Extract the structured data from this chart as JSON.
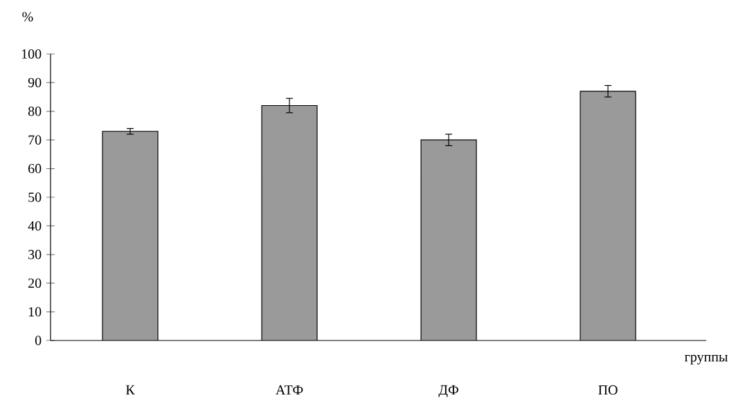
{
  "chart_data": {
    "type": "bar",
    "xlabel": "группы",
    "ylabel": "%",
    "categories": [
      "К",
      "АТФ",
      "ДФ",
      "ПО"
    ],
    "values": [
      73,
      82,
      70,
      87
    ],
    "errors": [
      1,
      2.5,
      2,
      2
    ],
    "color": "#9a9a9a",
    "ylim": [
      0,
      100
    ],
    "yticks": [
      0,
      10,
      20,
      30,
      40,
      50,
      60,
      70,
      80,
      90,
      100
    ],
    "grid": false
  }
}
